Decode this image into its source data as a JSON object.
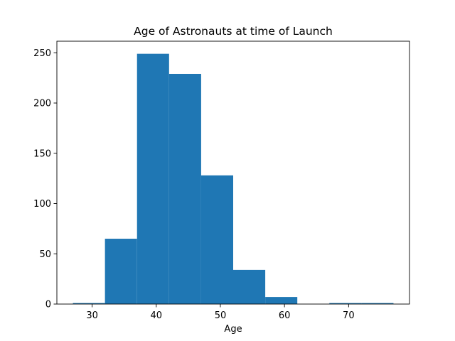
{
  "chart_data": {
    "type": "bar",
    "title": "Age of Astronauts at time of Launch",
    "xlabel": "Age",
    "ylabel": "",
    "bins": [
      {
        "start": 27,
        "end": 32,
        "count": 1
      },
      {
        "start": 32,
        "end": 37,
        "count": 65
      },
      {
        "start": 37,
        "end": 42,
        "count": 249
      },
      {
        "start": 42,
        "end": 47,
        "count": 229
      },
      {
        "start": 47,
        "end": 52,
        "count": 128
      },
      {
        "start": 52,
        "end": 57,
        "count": 34
      },
      {
        "start": 57,
        "end": 62,
        "count": 7
      },
      {
        "start": 62,
        "end": 67,
        "count": 0
      },
      {
        "start": 67,
        "end": 72,
        "count": 1
      },
      {
        "start": 72,
        "end": 77,
        "count": 1
      }
    ],
    "xlim": [
      24.5,
      79.5
    ],
    "ylim": [
      0,
      261.5
    ],
    "xticks": [
      30,
      40,
      50,
      60,
      70
    ],
    "yticks": [
      0,
      50,
      100,
      150,
      200,
      250
    ],
    "bar_color": "#1f77b4",
    "grid": false
  }
}
